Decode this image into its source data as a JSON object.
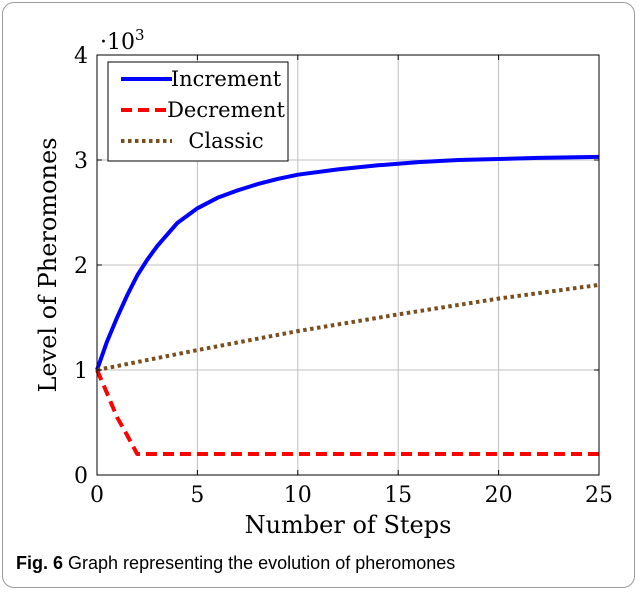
{
  "caption": {
    "label": "Fig. 6",
    "text": "Graph representing the evolution of pheromones"
  },
  "chart_data": {
    "type": "line",
    "title": "",
    "xlabel": "Number of Steps",
    "ylabel": "Level of Pheromones",
    "scale_label": "·10",
    "scale_exponent": "3",
    "xlim": [
      0,
      25
    ],
    "ylim": [
      0,
      4
    ],
    "xticks": [
      "0",
      "5",
      "10",
      "15",
      "20",
      "25"
    ],
    "yticks": [
      "0",
      "1",
      "2",
      "3",
      "4"
    ],
    "grid": true,
    "legend_position": "top-left",
    "series": [
      {
        "name": "Increment",
        "color": "#0000ff",
        "style": "solid",
        "x": [
          0,
          0.5,
          1,
          1.5,
          2,
          2.5,
          3,
          4,
          5,
          6,
          7,
          8,
          9,
          10,
          12,
          14,
          16,
          18,
          20,
          22,
          25
        ],
        "y": [
          1.0,
          1.27,
          1.5,
          1.71,
          1.9,
          2.05,
          2.18,
          2.4,
          2.54,
          2.64,
          2.71,
          2.77,
          2.82,
          2.86,
          2.91,
          2.95,
          2.98,
          3.0,
          3.01,
          3.02,
          3.03
        ]
      },
      {
        "name": "Decrement",
        "color": "#ff0000",
        "style": "dashed",
        "x": [
          0,
          0.5,
          1,
          1.5,
          2,
          25
        ],
        "y": [
          1.0,
          0.78,
          0.55,
          0.38,
          0.2,
          0.2
        ]
      },
      {
        "name": "Classic",
        "color": "#7a4f20",
        "style": "dotted",
        "x": [
          0,
          5,
          10,
          15,
          20,
          25
        ],
        "y": [
          1.0,
          1.19,
          1.37,
          1.53,
          1.68,
          1.81
        ]
      }
    ]
  }
}
